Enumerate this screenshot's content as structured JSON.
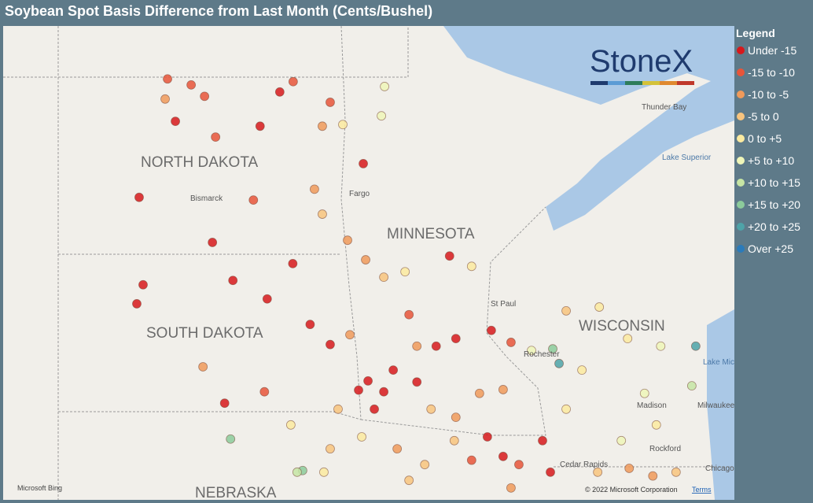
{
  "header": {
    "title": "Soybean Spot Basis Difference from Last Month (Cents/Bushel)"
  },
  "legend": {
    "title": "Legend",
    "items": [
      {
        "label": "Under -15",
        "color": "#d7191c"
      },
      {
        "label": "-15 to -10",
        "color": "#e8553a"
      },
      {
        "label": "-10 to -5",
        "color": "#f09a5a"
      },
      {
        "label": "-5 to 0",
        "color": "#f8c47e"
      },
      {
        "label": "0 to +5",
        "color": "#fbeaa0"
      },
      {
        "label": "+5 to +10",
        "color": "#eff6b9"
      },
      {
        "label": "+10 to +15",
        "color": "#c6e5a4"
      },
      {
        "label": "+15 to +20",
        "color": "#8ccb9b"
      },
      {
        "label": "+20 to +25",
        "color": "#4ea3a8"
      },
      {
        "label": "Over +25",
        "color": "#2b7bba"
      }
    ]
  },
  "logo": "StoneX",
  "map": {
    "labels": [
      "NORTH DAKOTA",
      "SOUTH DAKOTA",
      "MINNESOTA",
      "WISCONSIN",
      "NEBRASKA",
      "Bismarck",
      "Fargo",
      "St Paul",
      "Rochester",
      "Thunder Bay",
      "Lake Superior",
      "Madison",
      "Milwaukee",
      "Rockford",
      "Chicago",
      "Cedar Rapids",
      "Lake Michigan"
    ],
    "attribution": "Microsoft Bing",
    "copyright": "© 2022 Microsoft Corporation",
    "terms": "Terms",
    "points": [
      {
        "lon": -101.26,
        "lat": 49.05,
        "bin": 1
      },
      {
        "lon": -100.66,
        "lat": 48.94,
        "bin": 1
      },
      {
        "lon": -100.32,
        "lat": 48.73,
        "bin": 1
      },
      {
        "lon": -101.32,
        "lat": 48.68,
        "bin": 2
      },
      {
        "lon": -98.41,
        "lat": 48.81,
        "bin": 0
      },
      {
        "lon": -98.07,
        "lat": 49.0,
        "bin": 1
      },
      {
        "lon": -98.91,
        "lat": 48.18,
        "bin": 0
      },
      {
        "lon": -101.06,
        "lat": 48.27,
        "bin": 0
      },
      {
        "lon": -100.04,
        "lat": 47.98,
        "bin": 1
      },
      {
        "lon": -97.13,
        "lat": 48.62,
        "bin": 1
      },
      {
        "lon": -96.29,
        "lat": 47.49,
        "bin": 0
      },
      {
        "lon": -96.81,
        "lat": 48.21,
        "bin": 4
      },
      {
        "lon": -95.75,
        "lat": 48.91,
        "bin": 5
      },
      {
        "lon": -101.98,
        "lat": 46.87,
        "bin": 0
      },
      {
        "lon": -99.08,
        "lat": 46.82,
        "bin": 1
      },
      {
        "lon": -97.53,
        "lat": 47.02,
        "bin": 2
      },
      {
        "lon": -97.33,
        "lat": 46.56,
        "bin": 3
      },
      {
        "lon": -100.12,
        "lat": 46.04,
        "bin": 0
      },
      {
        "lon": -99.6,
        "lat": 45.34,
        "bin": 0
      },
      {
        "lon": -101.88,
        "lat": 45.26,
        "bin": 0
      },
      {
        "lon": -102.04,
        "lat": 44.91,
        "bin": 0
      },
      {
        "lon": -98.73,
        "lat": 45.0,
        "bin": 0
      },
      {
        "lon": -98.08,
        "lat": 45.65,
        "bin": 0
      },
      {
        "lon": -97.64,
        "lat": 44.53,
        "bin": 0
      },
      {
        "lon": -97.13,
        "lat": 44.16,
        "bin": 0
      },
      {
        "lon": -99.81,
        "lat": 43.08,
        "bin": 0
      },
      {
        "lon": -100.36,
        "lat": 43.75,
        "bin": 2
      },
      {
        "lon": -98.8,
        "lat": 43.29,
        "bin": 1
      },
      {
        "lon": -96.41,
        "lat": 43.32,
        "bin": 0
      },
      {
        "lon": -96.01,
        "lat": 42.97,
        "bin": 0
      },
      {
        "lon": -95.53,
        "lat": 43.69,
        "bin": 0
      },
      {
        "lon": -94.93,
        "lat": 43.47,
        "bin": 0
      },
      {
        "lon": -94.44,
        "lat": 44.13,
        "bin": 0
      },
      {
        "lon": -93.94,
        "lat": 44.27,
        "bin": 0
      },
      {
        "lon": -93.04,
        "lat": 44.42,
        "bin": 0
      },
      {
        "lon": -92.54,
        "lat": 44.2,
        "bin": 1
      },
      {
        "lon": -93.14,
        "lat": 42.46,
        "bin": 0
      },
      {
        "lon": -92.74,
        "lat": 42.1,
        "bin": 0
      },
      {
        "lon": -91.74,
        "lat": 42.39,
        "bin": 0
      },
      {
        "lon": -91.54,
        "lat": 41.81,
        "bin": 0
      },
      {
        "lon": -92.34,
        "lat": 41.95,
        "bin": 1
      },
      {
        "lon": -93.54,
        "lat": 42.03,
        "bin": 1
      },
      {
        "lon": -95.43,
        "lat": 42.24,
        "bin": 2
      },
      {
        "lon": -94.73,
        "lat": 41.95,
        "bin": 3
      },
      {
        "lon": -93.94,
        "lat": 42.82,
        "bin": 2
      },
      {
        "lon": -93.34,
        "lat": 43.26,
        "bin": 2
      },
      {
        "lon": -92.74,
        "lat": 43.33,
        "bin": 2
      },
      {
        "lon": -96.93,
        "lat": 42.97,
        "bin": 3
      },
      {
        "lon": -97.13,
        "lat": 42.24,
        "bin": 3
      },
      {
        "lon": -96.33,
        "lat": 42.46,
        "bin": 4
      },
      {
        "lon": -98.13,
        "lat": 42.68,
        "bin": 4
      },
      {
        "lon": -99.66,
        "lat": 42.42,
        "bin": 7
      },
      {
        "lon": -97.83,
        "lat": 41.84,
        "bin": 7
      },
      {
        "lon": -97.29,
        "lat": 41.81,
        "bin": 4
      },
      {
        "lon": -91.48,
        "lat": 44.08,
        "bin": 7
      },
      {
        "lon": -91.32,
        "lat": 43.81,
        "bin": 8
      },
      {
        "lon": -92.02,
        "lat": 44.05,
        "bin": 5
      },
      {
        "lon": -91.14,
        "lat": 44.78,
        "bin": 3
      },
      {
        "lon": -90.3,
        "lat": 44.85,
        "bin": 4
      },
      {
        "lon": -89.58,
        "lat": 44.27,
        "bin": 4
      },
      {
        "lon": -88.74,
        "lat": 44.13,
        "bin": 5
      },
      {
        "lon": -87.85,
        "lat": 44.13,
        "bin": 8
      },
      {
        "lon": -87.95,
        "lat": 43.4,
        "bin": 6
      },
      {
        "lon": -89.15,
        "lat": 43.26,
        "bin": 5
      },
      {
        "lon": -88.85,
        "lat": 42.68,
        "bin": 4
      },
      {
        "lon": -89.74,
        "lat": 42.39,
        "bin": 5
      },
      {
        "lon": -90.34,
        "lat": 41.81,
        "bin": 3
      },
      {
        "lon": -89.54,
        "lat": 41.88,
        "bin": 2
      },
      {
        "lon": -88.94,
        "lat": 41.74,
        "bin": 2
      },
      {
        "lon": -88.35,
        "lat": 41.81,
        "bin": 3
      },
      {
        "lon": -91.14,
        "lat": 42.97,
        "bin": 4
      },
      {
        "lon": -90.74,
        "lat": 43.69,
        "bin": 4
      },
      {
        "lon": -95.77,
        "lat": 45.4,
        "bin": 3
      },
      {
        "lon": -96.23,
        "lat": 45.72,
        "bin": 2
      },
      {
        "lon": -95.13,
        "lat": 44.71,
        "bin": 1
      },
      {
        "lon": -95.23,
        "lat": 45.5,
        "bin": 4
      },
      {
        "lon": -94.1,
        "lat": 45.79,
        "bin": 0
      },
      {
        "lon": -93.54,
        "lat": 45.6,
        "bin": 4
      },
      {
        "lon": -97.33,
        "lat": 48.18,
        "bin": 2
      },
      {
        "lon": -95.83,
        "lat": 48.37,
        "bin": 5
      },
      {
        "lon": -96.69,
        "lat": 46.08,
        "bin": 2
      },
      {
        "lon": -96.63,
        "lat": 44.34,
        "bin": 2
      },
      {
        "lon": -94.93,
        "lat": 44.13,
        "bin": 2
      },
      {
        "lon": -94.57,
        "lat": 42.97,
        "bin": 3
      },
      {
        "lon": -93.98,
        "lat": 42.39,
        "bin": 3
      },
      {
        "lon": -92.54,
        "lat": 41.52,
        "bin": 2
      },
      {
        "lon": -95.13,
        "lat": 41.66,
        "bin": 3
      },
      {
        "lon": -97.97,
        "lat": 41.81,
        "bin": 6
      },
      {
        "lon": -96.17,
        "lat": 43.49,
        "bin": 0
      },
      {
        "lon": -95.77,
        "lat": 43.29,
        "bin": 0
      }
    ]
  }
}
